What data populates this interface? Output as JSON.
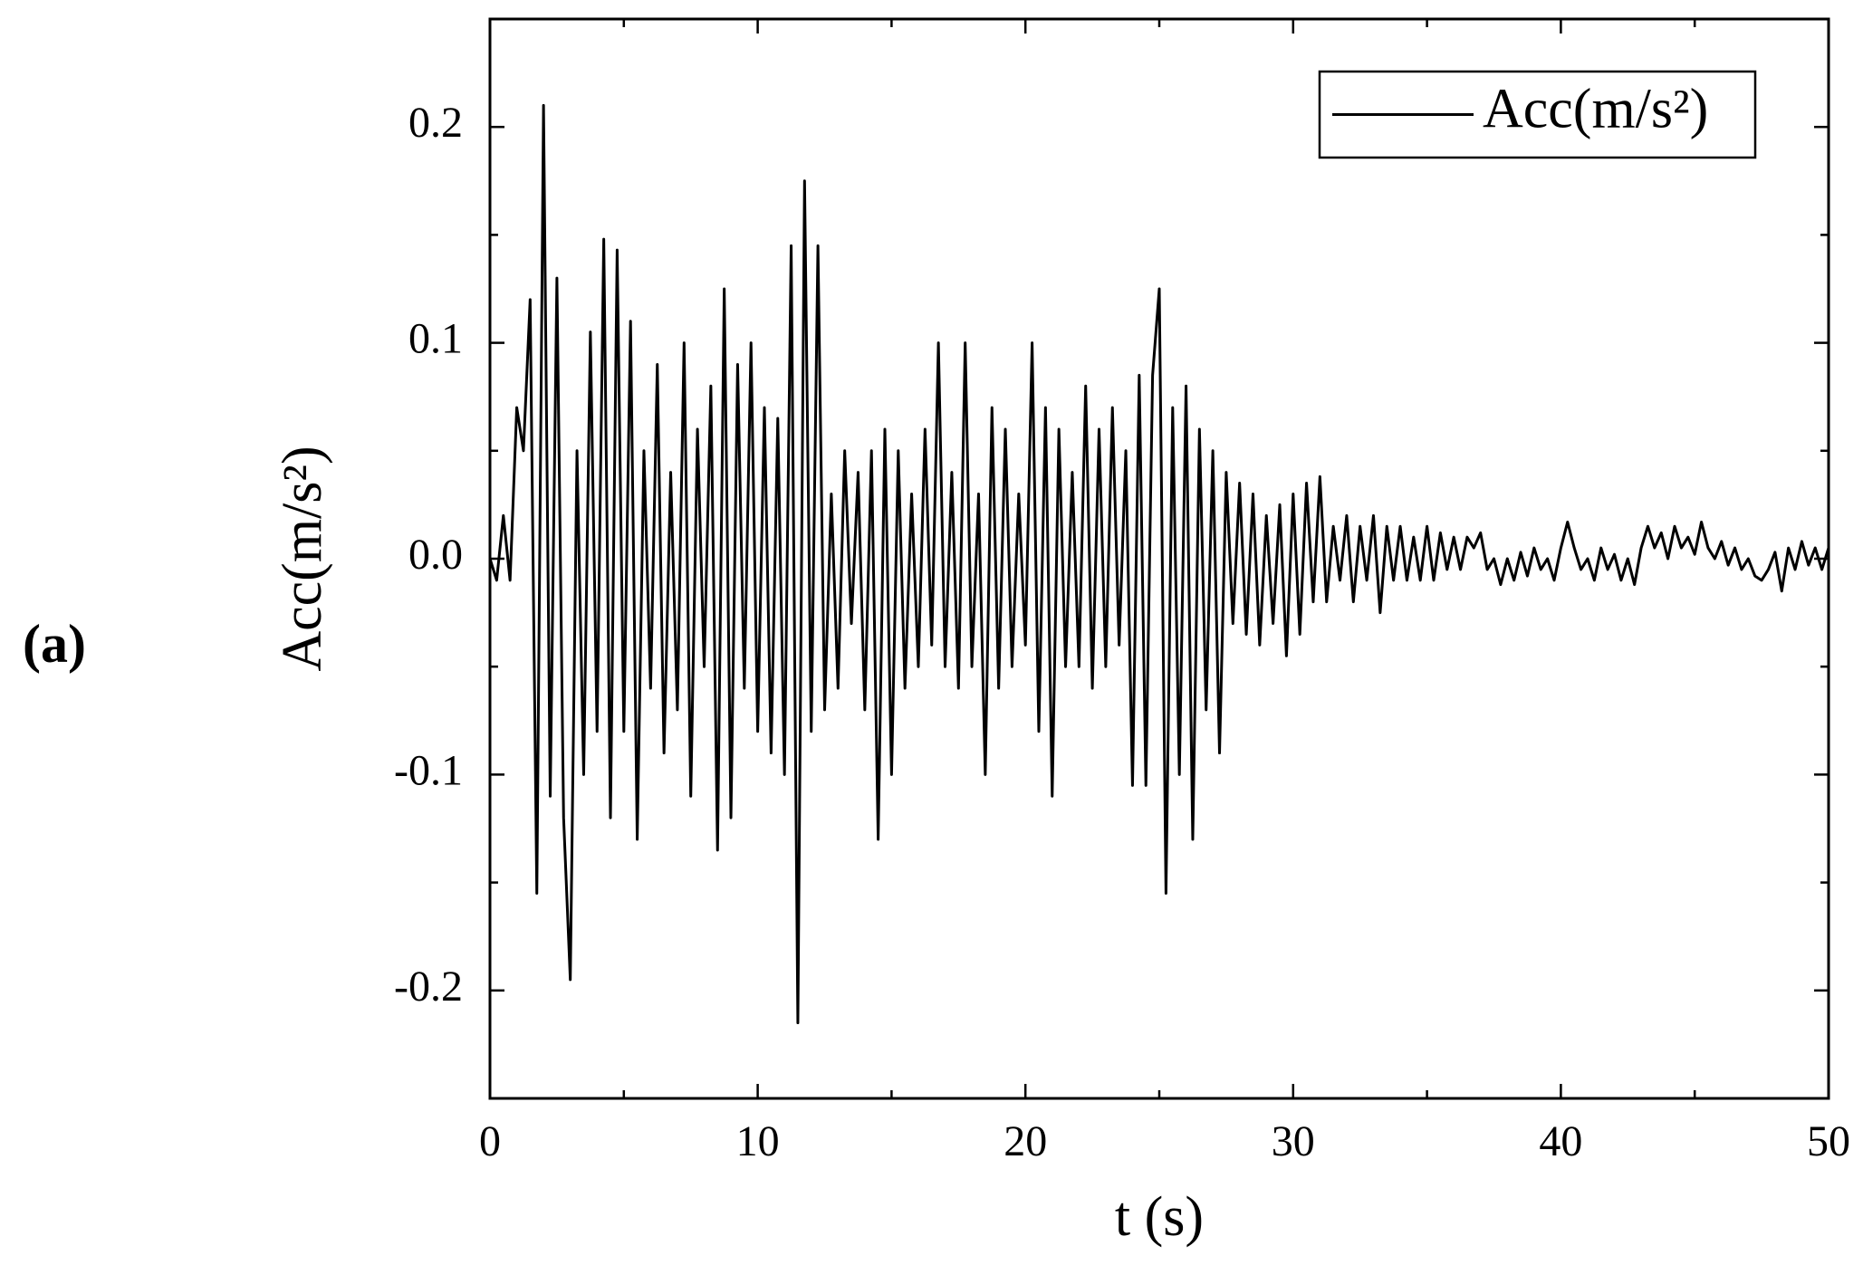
{
  "panel_label": "(a)",
  "chart_data": {
    "type": "line",
    "x_label": "t (s)",
    "y_label": "Acc(m/s²)",
    "legend": "upper right",
    "xlim": [
      0,
      50
    ],
    "xticks": [
      0,
      10,
      20,
      30,
      40,
      50
    ],
    "xminorticks": [
      5,
      15,
      25,
      35,
      45
    ],
    "ylim": [
      -0.25,
      0.25
    ],
    "yticks": [
      -0.2,
      -0.1,
      {
        "value": 0,
        "label": "0.0"
      },
      0.1,
      0.2
    ],
    "yminorticks": [
      -0.15,
      -0.05,
      0.05,
      0.15
    ],
    "x": [
      0,
      0.25,
      0.5,
      0.75,
      1,
      1.25,
      1.5,
      1.75,
      2,
      2.25,
      2.5,
      2.75,
      3,
      3.25,
      3.5,
      3.75,
      4,
      4.25,
      4.5,
      4.75,
      5,
      5.25,
      5.5,
      5.75,
      6,
      6.25,
      6.5,
      6.75,
      7,
      7.25,
      7.5,
      7.75,
      8,
      8.25,
      8.5,
      8.75,
      9,
      9.25,
      9.5,
      9.75,
      10,
      10.25,
      10.5,
      10.75,
      11,
      11.25,
      11.5,
      11.75,
      12,
      12.25,
      12.5,
      12.75,
      13,
      13.25,
      13.5,
      13.75,
      14,
      14.25,
      14.5,
      14.75,
      15,
      15.25,
      15.5,
      15.75,
      16,
      16.25,
      16.5,
      16.75,
      17,
      17.25,
      17.5,
      17.75,
      18,
      18.25,
      18.5,
      18.75,
      19,
      19.25,
      19.5,
      19.75,
      20,
      20.25,
      20.5,
      20.75,
      21,
      21.25,
      21.5,
      21.75,
      22,
      22.25,
      22.5,
      22.75,
      23,
      23.25,
      23.5,
      23.75,
      24,
      24.25,
      24.5,
      24.75,
      25,
      25.25,
      25.5,
      25.75,
      26,
      26.25,
      26.5,
      26.75,
      27,
      27.25,
      27.5,
      27.75,
      28,
      28.25,
      28.5,
      28.75,
      29,
      29.25,
      29.5,
      29.75,
      30,
      30.25,
      30.5,
      30.75,
      31,
      31.25,
      31.5,
      31.75,
      32,
      32.25,
      32.5,
      32.75,
      33,
      33.25,
      33.5,
      33.75,
      34,
      34.25,
      34.5,
      34.75,
      35,
      35.25,
      35.5,
      35.75,
      36,
      36.25,
      36.5,
      36.75,
      37,
      37.25,
      37.5,
      37.75,
      38,
      38.25,
      38.5,
      38.75,
      39,
      39.25,
      39.5,
      39.75,
      40,
      40.25,
      40.5,
      40.75,
      41,
      41.25,
      41.5,
      41.75,
      42,
      42.25,
      42.5,
      42.75,
      43,
      43.25,
      43.5,
      43.75,
      44,
      44.25,
      44.5,
      44.75,
      45,
      45.25,
      45.5,
      45.75,
      46,
      46.25,
      46.5,
      46.75,
      47,
      47.25,
      47.5,
      47.75,
      48,
      48.25,
      48.5,
      48.75,
      49,
      49.25,
      49.5,
      49.75,
      50
    ],
    "series": [
      {
        "name": "Acc(m/s²)",
        "color": "#000000",
        "values": [
          0,
          -0.01,
          0.02,
          -0.01,
          0.07,
          0.05,
          0.12,
          -0.155,
          0.21,
          -0.11,
          0.13,
          -0.12,
          -0.195,
          0.05,
          -0.1,
          0.105,
          -0.08,
          0.148,
          -0.12,
          0.143,
          -0.08,
          0.11,
          -0.13,
          0.05,
          -0.06,
          0.09,
          -0.09,
          0.04,
          -0.07,
          0.1,
          -0.11,
          0.06,
          -0.05,
          0.08,
          -0.135,
          0.125,
          -0.12,
          0.09,
          -0.06,
          0.1,
          -0.08,
          0.07,
          -0.09,
          0.065,
          -0.1,
          0.145,
          -0.215,
          0.175,
          -0.08,
          0.145,
          -0.07,
          0.03,
          -0.06,
          0.05,
          -0.03,
          0.04,
          -0.07,
          0.05,
          -0.13,
          0.06,
          -0.1,
          0.05,
          -0.06,
          0.03,
          -0.05,
          0.06,
          -0.04,
          0.1,
          -0.05,
          0.04,
          -0.06,
          0.1,
          -0.05,
          0.03,
          -0.1,
          0.07,
          -0.06,
          0.06,
          -0.05,
          0.03,
          -0.04,
          0.1,
          -0.08,
          0.07,
          -0.11,
          0.06,
          -0.05,
          0.04,
          -0.05,
          0.08,
          -0.06,
          0.06,
          -0.05,
          0.07,
          -0.04,
          0.05,
          -0.105,
          0.085,
          -0.105,
          0.085,
          0.125,
          -0.155,
          0.07,
          -0.1,
          0.08,
          -0.13,
          0.06,
          -0.07,
          0.05,
          -0.09,
          0.04,
          -0.03,
          0.035,
          -0.035,
          0.03,
          -0.04,
          0.02,
          -0.03,
          0.025,
          -0.045,
          0.03,
          -0.035,
          0.035,
          -0.02,
          0.038,
          -0.02,
          0.015,
          -0.01,
          0.02,
          -0.02,
          0.015,
          -0.01,
          0.02,
          -0.025,
          0.015,
          -0.01,
          0.015,
          -0.01,
          0.01,
          -0.01,
          0.015,
          -0.01,
          0.012,
          -0.005,
          0.01,
          -0.005,
          0.01,
          0.005,
          0.012,
          -0.005,
          0,
          -0.012,
          0,
          -0.01,
          0.003,
          -0.008,
          0.005,
          -0.005,
          0,
          -0.01,
          0.005,
          0.017,
          0.005,
          -0.005,
          0,
          -0.01,
          0.005,
          -0.005,
          0.002,
          -0.01,
          0,
          -0.012,
          0.005,
          0.015,
          0.005,
          0.012,
          0,
          0.015,
          0.005,
          0.01,
          0.002,
          0.017,
          0.005,
          0,
          0.008,
          -0.003,
          0.005,
          -0.005,
          0,
          -0.008,
          -0.01,
          -0.005,
          0.003,
          -0.015,
          0.005,
          -0.005,
          0.008,
          -0.003,
          0.005,
          -0.005,
          0.005
        ]
      }
    ]
  }
}
